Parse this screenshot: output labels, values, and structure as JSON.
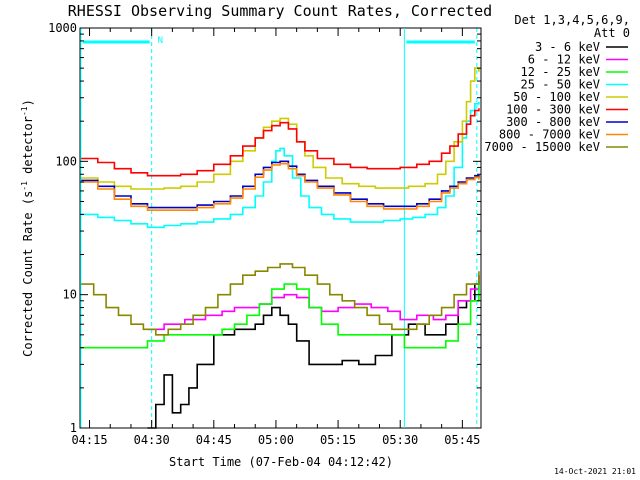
{
  "chart_data": {
    "type": "line",
    "title": "RHESSI Observing Summary Count Rates, Corrected",
    "xlabel": "Start Time (07-Feb-04 04:12:42)",
    "ylabel_main": "Corrected Count Rate (s",
    "ylabel_sup1": "-1",
    "ylabel_mid": " detector",
    "ylabel_sup2": "-1",
    "ylabel_end": ")",
    "yscale": "log",
    "ylim": [
      1,
      1000
    ],
    "xlim_minutes": [
      12.7,
      109.5
    ],
    "x_ticks": [
      {
        "label": "04:15",
        "minute": 15
      },
      {
        "label": "04:30",
        "minute": 30
      },
      {
        "label": "04:45",
        "minute": 45
      },
      {
        "label": "05:00",
        "minute": 60
      },
      {
        "label": "05:15",
        "minute": 75
      },
      {
        "label": "05:30",
        "minute": 90
      },
      {
        "label": "05:45",
        "minute": 105
      }
    ],
    "y_ticks": [
      {
        "label": "1",
        "value": 1
      },
      {
        "label": "10",
        "value": 10
      },
      {
        "label": "100",
        "value": 100
      },
      {
        "label": "1000",
        "value": 1000
      }
    ],
    "legend_header": [
      "Det 1,3,4,5,6,9,",
      "Att 0"
    ],
    "legend_position": "right",
    "series": [
      {
        "name": "3 - 6 keV",
        "color": "#000000",
        "x": [
          29,
          31,
          33,
          35,
          37,
          39,
          41,
          45,
          50,
          55,
          57,
          59,
          61,
          63,
          65,
          68,
          72,
          76,
          80,
          84,
          88,
          92,
          96,
          99,
          101,
          104,
          106,
          108,
          109
        ],
        "y": [
          1,
          1.5,
          2.5,
          1.3,
          1.5,
          2,
          3,
          5,
          5.5,
          6,
          7,
          8,
          7,
          6,
          4.5,
          3,
          3,
          3.2,
          3,
          3.5,
          5,
          6,
          5,
          5,
          6,
          8,
          9,
          12,
          14
        ]
      },
      {
        "name": "6 - 12 keV",
        "color": "#ff00ff",
        "x": [
          29,
          33,
          38,
          43,
          47,
          50,
          53,
          56,
          59,
          62,
          65,
          68,
          71,
          75,
          79,
          83,
          87,
          90,
          94,
          98,
          101,
          104,
          107,
          109
        ],
        "y": [
          5.5,
          6,
          6.5,
          7,
          7.5,
          8,
          8,
          8.5,
          9.5,
          10,
          9.5,
          8,
          7.5,
          8,
          8.5,
          8,
          7.5,
          6.5,
          7,
          6.5,
          7,
          9,
          11,
          14
        ]
      },
      {
        "name": "12 - 25 keV",
        "color": "#00ff00",
        "x": [
          13,
          25,
          29,
          33,
          38,
          43,
          47,
          50,
          53,
          56,
          59,
          62,
          65,
          68,
          71,
          75,
          79,
          83,
          87,
          91,
          95,
          98,
          101,
          104,
          107,
          109
        ],
        "y": [
          4,
          4,
          4.5,
          5,
          5,
          5,
          5.5,
          6,
          7,
          8.5,
          11,
          12,
          11,
          8,
          6,
          5,
          5,
          5,
          5,
          4,
          4,
          4,
          4.5,
          6,
          9,
          13
        ]
      },
      {
        "name": "25 - 50 keV",
        "color": "#00ffff",
        "x": [
          13,
          17,
          21,
          25,
          29,
          33,
          37,
          41,
          45,
          49,
          52,
          55,
          57,
          59,
          60,
          61,
          62,
          64,
          66,
          68,
          71,
          74,
          78,
          82,
          86,
          90,
          93,
          96,
          99,
          101,
          103,
          105,
          106,
          107,
          108,
          109
        ],
        "y": [
          40,
          38,
          36,
          34,
          32,
          33,
          34,
          35,
          37,
          40,
          45,
          55,
          70,
          100,
          120,
          125,
          110,
          75,
          55,
          45,
          40,
          37,
          35,
          35,
          36,
          37,
          38,
          40,
          45,
          55,
          90,
          150,
          200,
          240,
          270,
          280
        ]
      },
      {
        "name": "50 - 100 keV",
        "color": "#cccc00",
        "x": [
          13,
          17,
          21,
          25,
          29,
          33,
          37,
          41,
          45,
          49,
          52,
          55,
          57,
          59,
          61,
          63,
          65,
          67,
          69,
          72,
          76,
          80,
          84,
          88,
          92,
          96,
          99,
          101,
          103,
          105,
          106,
          107,
          108,
          109
        ],
        "y": [
          75,
          70,
          65,
          62,
          62,
          63,
          65,
          70,
          80,
          100,
          120,
          150,
          180,
          200,
          210,
          190,
          140,
          110,
          90,
          75,
          68,
          65,
          63,
          63,
          65,
          68,
          80,
          100,
          140,
          200,
          280,
          400,
          500,
          470
        ]
      },
      {
        "name": "100 - 300 keV",
        "color": "#ff0000",
        "x": [
          13,
          17,
          21,
          25,
          29,
          33,
          37,
          41,
          45,
          49,
          52,
          55,
          57,
          59,
          61,
          63,
          65,
          67,
          70,
          74,
          78,
          82,
          86,
          90,
          94,
          97,
          100,
          102,
          104,
          106,
          107,
          108,
          109
        ],
        "y": [
          105,
          98,
          88,
          82,
          78,
          78,
          80,
          85,
          95,
          110,
          130,
          150,
          170,
          185,
          195,
          175,
          140,
          120,
          105,
          95,
          90,
          88,
          88,
          90,
          95,
          100,
          115,
          130,
          160,
          190,
          220,
          240,
          250
        ]
      },
      {
        "name": "300 - 800 keV",
        "color": "#0000cc",
        "x": [
          13,
          17,
          21,
          25,
          29,
          33,
          37,
          41,
          45,
          49,
          52,
          55,
          57,
          59,
          61,
          63,
          65,
          67,
          70,
          74,
          78,
          82,
          86,
          90,
          94,
          97,
          100,
          102,
          104,
          106,
          108,
          109
        ],
        "y": [
          72,
          65,
          55,
          48,
          45,
          45,
          45,
          47,
          50,
          55,
          65,
          80,
          90,
          98,
          100,
          92,
          80,
          72,
          65,
          58,
          52,
          48,
          46,
          46,
          48,
          52,
          60,
          65,
          70,
          75,
          78,
          75
        ]
      },
      {
        "name": "800 - 7000 keV",
        "color": "#ff8800",
        "x": [
          13,
          17,
          21,
          25,
          29,
          33,
          37,
          41,
          45,
          49,
          52,
          55,
          57,
          59,
          61,
          63,
          65,
          67,
          70,
          74,
          78,
          82,
          86,
          90,
          94,
          97,
          100,
          102,
          104,
          106,
          108,
          109
        ],
        "y": [
          70,
          62,
          52,
          46,
          43,
          43,
          43,
          45,
          48,
          53,
          62,
          76,
          86,
          94,
          96,
          88,
          78,
          70,
          63,
          56,
          50,
          46,
          44,
          44,
          46,
          50,
          58,
          63,
          68,
          73,
          76,
          73
        ]
      },
      {
        "name": "7000 - 15000 keV",
        "color": "#888800",
        "x": [
          13,
          16,
          19,
          22,
          25,
          28,
          31,
          34,
          37,
          40,
          43,
          46,
          49,
          52,
          55,
          58,
          61,
          64,
          67,
          70,
          73,
          76,
          79,
          82,
          85,
          88,
          91,
          94,
          97,
          100,
          103,
          106,
          109
        ],
        "y": [
          12,
          10,
          8,
          7,
          6,
          5.5,
          5,
          5.5,
          6,
          7,
          8,
          10,
          12,
          14,
          15,
          16,
          17,
          16,
          14,
          12,
          10,
          9,
          8,
          7,
          6,
          5.5,
          5.5,
          6,
          7,
          8,
          10,
          12,
          15
        ]
      }
    ],
    "markers": {
      "segment_label": "N",
      "dashed_line_minutes": [
        30,
        108.5
      ],
      "solid_line_minutes": [
        12.9,
        91
      ]
    },
    "footer_timestamp": "14-Oct-2021 21:01"
  }
}
